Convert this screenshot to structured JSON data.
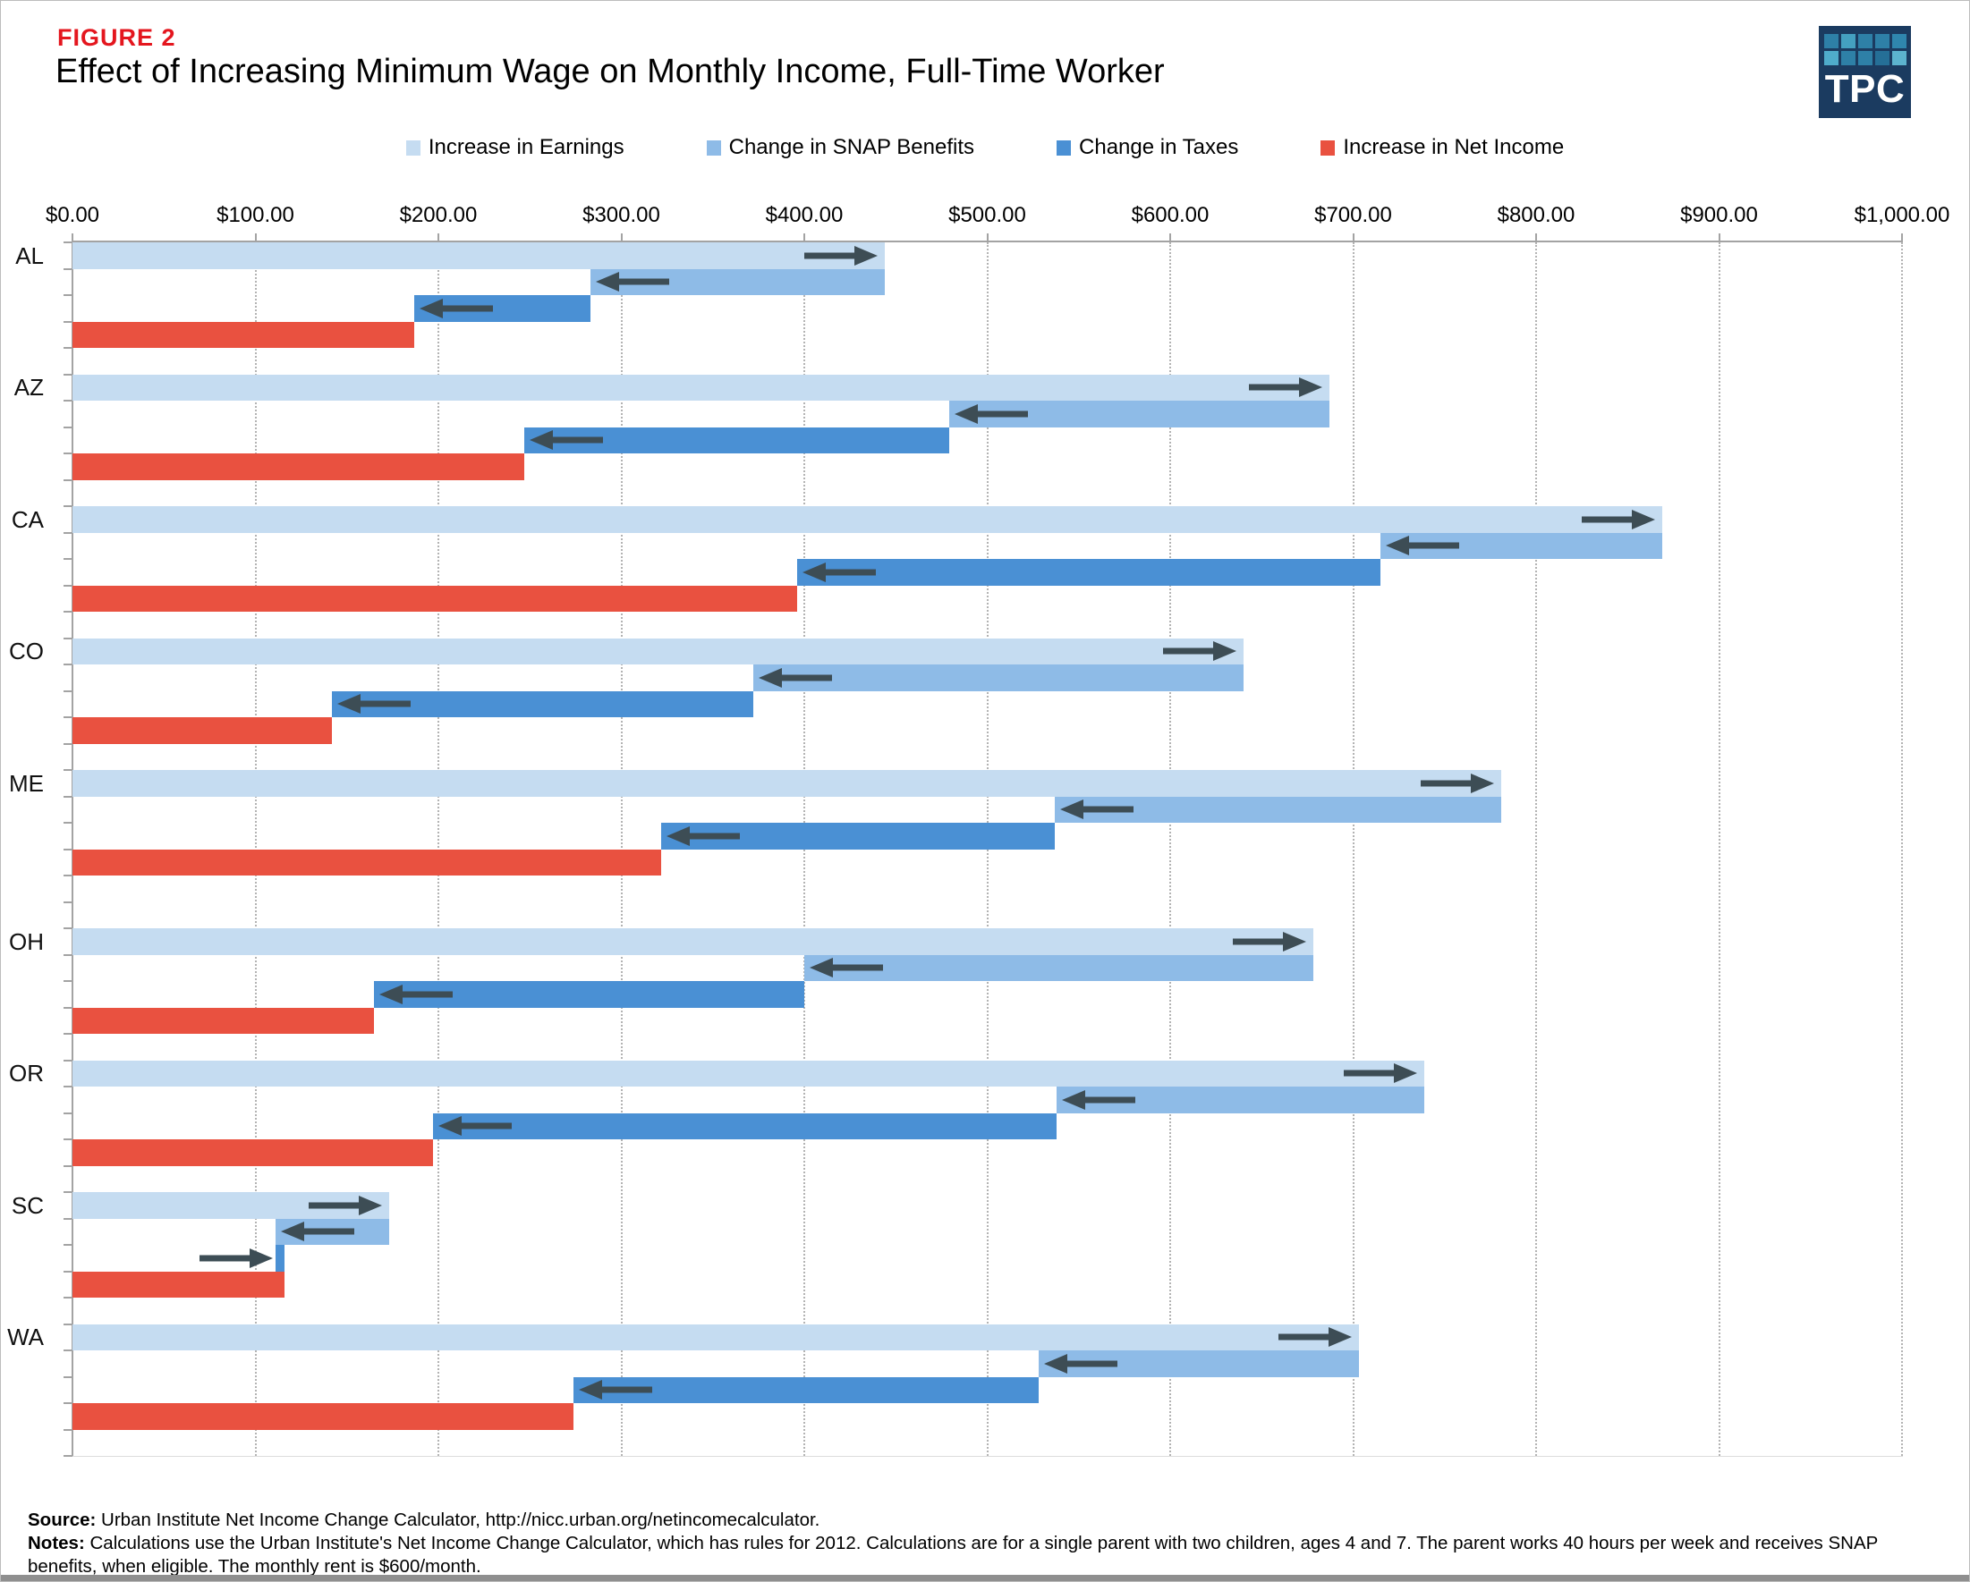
{
  "header": {
    "figure_label": "FIGURE 2",
    "title": "Effect of Increasing Minimum Wage on Monthly Income, Full-Time Worker"
  },
  "logo": {
    "text": "TPC",
    "bg": "#1b3b60",
    "squares": [
      "#2e80a7",
      "#44a0c0",
      "#2e80a7",
      "#2e80a7",
      "#2f86ae",
      "#4faccb",
      "#2e80a7",
      "#2e80a7",
      "#256f97",
      "#5cb3ce"
    ]
  },
  "legend": [
    {
      "label": "Increase in Earnings",
      "color_key": "earnings"
    },
    {
      "label": "Change in SNAP Benefits",
      "color_key": "snap"
    },
    {
      "label": "Change in Taxes",
      "color_key": "taxes"
    },
    {
      "label": "Increase in Net Income",
      "color_key": "net"
    }
  ],
  "colors": {
    "earnings": "#c5dcf1",
    "snap": "#8ebbe7",
    "taxes": "#4a90d4",
    "net": "#e95140",
    "arrow": "#3d4d55",
    "grid": "#b3b3b3",
    "axis": "#a3a3a3",
    "figure_red": "#e4161e"
  },
  "chart_data": {
    "type": "bar",
    "subtype": "horizontal-waterfall",
    "title": "Effect of Increasing Minimum Wage on Monthly Income, Full-Time Worker",
    "categories": [
      "AL",
      "AZ",
      "CA",
      "CO",
      "ME",
      "OH",
      "OR",
      "SC",
      "WA"
    ],
    "series": [
      {
        "name": "Increase in Earnings",
        "color_key": "earnings",
        "arrow": "right",
        "values": [
          444,
          687,
          869,
          640,
          781,
          678,
          739,
          173,
          703
        ]
      },
      {
        "name": "Change in SNAP Benefits",
        "color_key": "snap",
        "arrow": "left",
        "values": [
          -161,
          -208,
          -154,
          -268,
          -244,
          -278,
          -201,
          -62,
          -175
        ]
      },
      {
        "name": "Change in Taxes",
        "color_key": "taxes",
        "arrow": "by-sign",
        "values": [
          -96,
          -232,
          -319,
          -230,
          -215,
          -235,
          -341,
          5,
          -254
        ]
      },
      {
        "name": "Increase in Net Income",
        "color_key": "net",
        "arrow": "none",
        "values": [
          187,
          247,
          396,
          142,
          322,
          165,
          197,
          116,
          274
        ]
      }
    ],
    "x_axis": {
      "min": 0,
      "max": 1000,
      "tick_step": 100,
      "tick_labels": [
        "$0.00",
        "$100.00",
        "$200.00",
        "$300.00",
        "$400.00",
        "$500.00",
        "$600.00",
        "$700.00",
        "$800.00",
        "$900.00",
        "$1,000.00"
      ]
    },
    "legend_position": "top",
    "grid": "dotted-vertical",
    "notes_on_reading": "Each state shows a waterfall: earnings bar from 0; SNAP and taxes bars float, stepping down (arrows show direction of change); net income bar from 0."
  },
  "footer": {
    "source_label": "Source:",
    "source_text": " Urban Institute Net Income Change Calculator, http://nicc.urban.org/netincomecalculator.",
    "notes_label": "Notes:",
    "notes_text": " Calculations use the Urban Institute's Net Income Change Calculator, which has rules for 2012. Calculations are for a single parent with two children, ages 4 and 7. The parent works 40 hours per week and receives SNAP benefits, when eligible. The monthly rent is $600/month."
  }
}
